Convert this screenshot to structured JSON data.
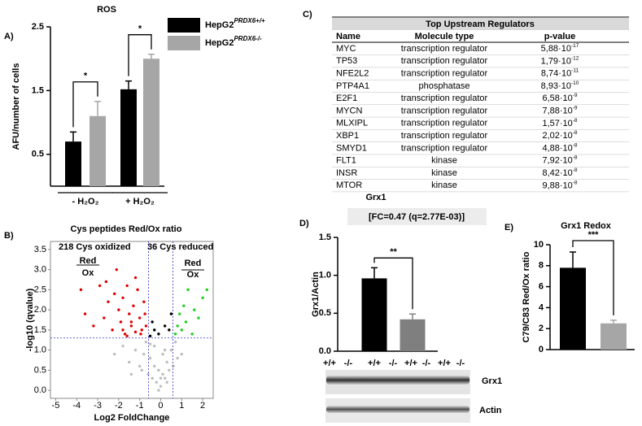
{
  "panel_labels": [
    "A)",
    "B)",
    "C)",
    "D)",
    "E)"
  ],
  "chart_data": [
    {
      "type": "bar",
      "title": "ROS",
      "y_label": "AFU/number of cells",
      "categories": [
        "- H₂O₂",
        "+ H₂O₂"
      ],
      "series": [
        {
          "name": "HepG2",
          "name_sup": "PRDX6+/+",
          "color": "#000000",
          "values": [
            0.7,
            1.52
          ],
          "errors": [
            0.15,
            0.13
          ]
        },
        {
          "name": "HepG2",
          "name_sup": "PRDX6-/-",
          "color": "#a6a6a6",
          "values": [
            1.1,
            2.0
          ],
          "errors": [
            0.23,
            0.07
          ]
        }
      ],
      "ylim": [
        0,
        2.5
      ],
      "yticks": [
        0.5,
        1.5,
        2.5
      ],
      "significance": [
        "*",
        "*"
      ]
    },
    {
      "type": "scatter",
      "title": "Cys peptides Red/Ox ratio",
      "x_label": "Log2 FoldChange",
      "y_label": "-log10 (qvalue)",
      "xlim": [
        -5.25,
        2.5
      ],
      "xticks": [
        -5,
        -4,
        -3,
        -2,
        -1,
        0,
        1,
        2
      ],
      "ylim": [
        -0.2,
        3.7
      ],
      "yticks": [
        {
          "value": 0,
          "label": "0.0"
        },
        0.5,
        {
          "value": 1,
          "label": "1.0"
        },
        1.5,
        {
          "value": 2,
          "label": "2.0"
        },
        2.5,
        {
          "value": 3,
          "label": "3.0"
        },
        3.5
      ],
      "vlines": [
        -0.58,
        0.58
      ],
      "hline": 1.3,
      "threshold_color": "#3333cc",
      "series": [
        {
          "color": "#bdbdbd",
          "x": [
            -2.2,
            -1.8,
            -1.5,
            -1.2,
            -1.0,
            -0.8,
            -0.6,
            -0.5,
            -0.4,
            -0.3,
            -0.2,
            -0.1,
            0.0,
            0.1,
            0.2,
            0.3,
            0.4,
            0.5,
            0.6,
            0.8,
            1.0,
            -0.7,
            -0.3,
            0.1,
            0.3,
            -0.1,
            0.0,
            -0.9,
            0.7,
            -1.4,
            -0.5,
            0.2
          ],
          "values": [
            0.9,
            1.1,
            0.7,
            1.0,
            0.6,
            0.9,
            0.4,
            0.8,
            0.3,
            0.6,
            0.2,
            0.5,
            0.1,
            0.4,
            0.3,
            0.7,
            0.5,
            1.0,
            0.6,
            0.8,
            0.9,
            1.2,
            1.1,
            0.9,
            0.2,
            0.0,
            0.3,
            0.5,
            1.2,
            0.4,
            1.15,
            1.0
          ]
        },
        {
          "color": "#e00000",
          "x": [
            -3.8,
            -3.6,
            -3.2,
            -2.9,
            -2.7,
            -2.5,
            -2.3,
            -2.2,
            -2.0,
            -1.9,
            -1.8,
            -1.7,
            -1.6,
            -1.5,
            -1.4,
            -1.3,
            -1.2,
            -1.1,
            -1.0,
            -0.9,
            -0.8,
            -0.7,
            -2.1,
            -1.6,
            -1.2,
            -0.95,
            -1.8,
            -1.4,
            -2.6,
            -0.75
          ],
          "values": [
            2.5,
            1.9,
            1.6,
            2.6,
            1.8,
            2.2,
            1.5,
            2.4,
            2.0,
            1.7,
            2.3,
            1.4,
            2.6,
            1.9,
            1.6,
            2.1,
            1.45,
            2.5,
            1.8,
            1.5,
            2.2,
            1.6,
            3.0,
            1.35,
            2.8,
            1.4,
            1.5,
            1.7,
            2.7,
            1.9
          ]
        },
        {
          "color": "#22cc22",
          "x": [
            0.7,
            0.8,
            0.9,
            1.0,
            1.1,
            1.2,
            1.3,
            1.5,
            1.6,
            1.8,
            2.0,
            2.2
          ],
          "values": [
            1.4,
            1.6,
            1.9,
            1.5,
            2.1,
            1.7,
            2.5,
            1.4,
            2.0,
            1.8,
            2.3,
            2.5
          ]
        },
        {
          "color": "#000000",
          "x": [
            -0.5,
            -0.3,
            -0.1,
            0.2,
            0.4,
            0.5,
            -0.4
          ],
          "values": [
            1.35,
            1.5,
            1.4,
            1.6,
            1.5,
            1.9,
            1.7
          ]
        }
      ],
      "annotations": {
        "oxidized": "218 Cys oxidized",
        "reduced": "36 Cys reduced",
        "left_top": "Red",
        "left_bottom": "Ox",
        "right_top": "Red",
        "right_bottom": "Ox"
      }
    },
    {
      "type": "bar",
      "title": "Grx1",
      "annotation": "[FC=0.47 (q=2.77E-03)]",
      "y_label": "Grx1/Actin",
      "categories": [
        null,
        null
      ],
      "values": [
        0.96,
        0.42
      ],
      "errors": [
        0.14,
        0.07
      ],
      "colors": [
        "#000000",
        "#7f7f7f"
      ],
      "ylim": [
        0,
        1.5
      ],
      "yticks": [
        {
          "value": 0,
          "label": "0.0"
        },
        0.5,
        {
          "value": 1,
          "label": "1.0"
        },
        1.5
      ],
      "significance": "**"
    },
    {
      "type": "bar",
      "title": "Grx1 Redox",
      "y_label": "C79/C83 Red/Ox ratio",
      "categories": [
        null,
        null
      ],
      "values": [
        7.8,
        2.5
      ],
      "errors": [
        1.5,
        0.3
      ],
      "colors": [
        "#000000",
        "#a6a6a6"
      ],
      "ylim": [
        0,
        10
      ],
      "yticks": [
        0,
        2,
        4,
        6,
        8,
        10
      ],
      "significance": "***"
    }
  ],
  "blot": {
    "lanes": [
      "+/+",
      "-/-",
      "+/+",
      "-/-",
      "+/+",
      "-/-",
      "+/+",
      "-/-"
    ],
    "bands": [
      "Grx1",
      "Actin"
    ]
  },
  "table": {
    "title": "Top Upstream Regulators",
    "header": [
      "Name",
      "Molecule type",
      "p-value"
    ],
    "rows": [
      [
        "MYC",
        "transcription regulator",
        {
          "base": "5,88·10",
          "exp": "-17"
        }
      ],
      [
        "TP53",
        "transcription regulator",
        {
          "base": "1,79·10",
          "exp": "-12"
        }
      ],
      [
        "NFE2L2",
        "transcription regulator",
        {
          "base": "8,74·10",
          "exp": "-11"
        }
      ],
      [
        "PTP4A1",
        "phosphatase",
        {
          "base": "8,93·10",
          "exp": "-10"
        }
      ],
      [
        "E2F1",
        "transcription regulator",
        {
          "base": "6,58·10",
          "exp": "-9"
        }
      ],
      [
        "MYCN",
        "transcription regulator",
        {
          "base": "7,88·10",
          "exp": "-9"
        }
      ],
      [
        "MLXIPL",
        "transcription regulator",
        {
          "base": "1,57·10",
          "exp": "-8"
        }
      ],
      [
        "XBP1",
        "transcription regulator",
        {
          "base": "2,02·10",
          "exp": "-8"
        }
      ],
      [
        "SMYD1",
        "transcription regulator",
        {
          "base": "4,88·10",
          "exp": "-8"
        }
      ],
      [
        "FLT1",
        "kinase",
        {
          "base": "7,92·10",
          "exp": "-8"
        }
      ],
      [
        "INSR",
        "kinase",
        {
          "base": "8,42·10",
          "exp": "-8"
        }
      ],
      [
        "MTOR",
        "kinase",
        {
          "base": "9,88·10",
          "exp": "-8"
        }
      ]
    ]
  }
}
